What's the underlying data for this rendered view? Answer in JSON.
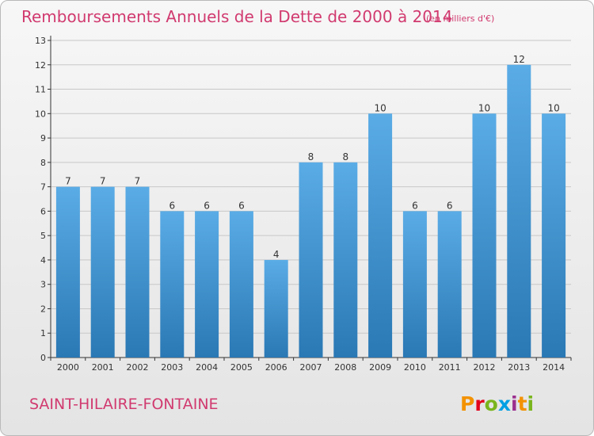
{
  "chart_data": {
    "type": "bar",
    "title": "Remboursements Annuels de la Dette de 2000 à 2014",
    "subtitle": "(en milliers d'€)",
    "categories": [
      "2000",
      "2001",
      "2002",
      "2003",
      "2004",
      "2005",
      "2006",
      "2007",
      "2008",
      "2009",
      "2010",
      "2011",
      "2012",
      "2013",
      "2014"
    ],
    "values": [
      7,
      7,
      7,
      6,
      6,
      6,
      4,
      8,
      8,
      10,
      6,
      6,
      10,
      12,
      10
    ],
    "y_ticks": [
      "0",
      "1",
      "2",
      "3",
      "4",
      "5",
      "6",
      "7",
      "8",
      "9",
      "10",
      "11",
      "12",
      "13"
    ],
    "ylim": [
      0,
      13
    ],
    "xlabel": "",
    "ylabel": "",
    "grid": true,
    "legend": "none"
  },
  "footer": {
    "commune": "SAINT-HILAIRE-FONTAINE",
    "brand": "Proxiti",
    "brand_colors": [
      "#f39200",
      "#e2001a",
      "#7ab51d",
      "#009fe3",
      "#9b2f8e",
      "#f39200",
      "#7ab51d"
    ]
  },
  "colors": {
    "title": "#d13a6f",
    "bar_light": "#5aace6",
    "bar_dark": "#2a78b4",
    "grid": "#c8c8c8",
    "axis": "#333333"
  }
}
